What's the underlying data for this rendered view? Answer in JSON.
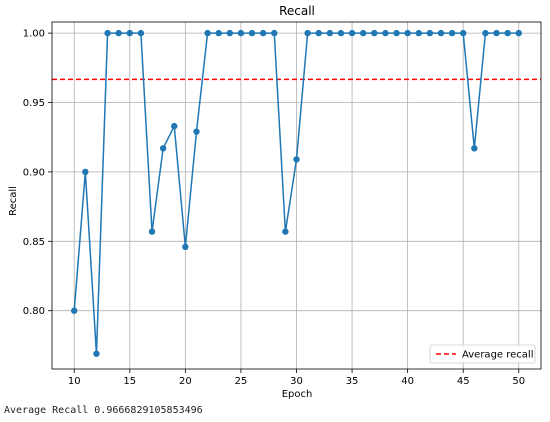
{
  "chart_data": {
    "type": "line",
    "title": "Recall",
    "xlabel": "Epoch",
    "ylabel": "Recall",
    "xlim": [
      8.0,
      52.0
    ],
    "ylim": [
      0.758,
      1.008
    ],
    "x_ticks": [
      10,
      15,
      20,
      25,
      30,
      35,
      40,
      45,
      50
    ],
    "y_ticks": [
      0.8,
      0.85,
      0.9,
      0.95,
      1.0
    ],
    "y_tick_labels": [
      "0.80",
      "0.85",
      "0.90",
      "0.95",
      "1.00"
    ],
    "grid": true,
    "legend": {
      "placement": "lower-right",
      "entries": [
        "Average recall"
      ]
    },
    "series": [
      {
        "color": "#1f77b4",
        "marker": "circle",
        "x": [
          10,
          11,
          12,
          13,
          14,
          15,
          16,
          17,
          18,
          19,
          20,
          21,
          22,
          23,
          24,
          25,
          26,
          27,
          28,
          29,
          30,
          31,
          32,
          33,
          34,
          35,
          36,
          37,
          38,
          39,
          40,
          41,
          42,
          43,
          44,
          45,
          46,
          47,
          48,
          49,
          50
        ],
        "values": [
          0.8,
          0.9,
          0.769,
          1.0,
          1.0,
          1.0,
          1.0,
          0.857,
          0.917,
          0.933,
          0.846,
          0.929,
          1.0,
          1.0,
          1.0,
          1.0,
          1.0,
          1.0,
          1.0,
          0.857,
          0.909,
          1.0,
          1.0,
          1.0,
          1.0,
          1.0,
          1.0,
          1.0,
          1.0,
          1.0,
          1.0,
          1.0,
          1.0,
          1.0,
          1.0,
          1.0,
          0.917,
          1.0,
          1.0,
          1.0,
          1.0
        ]
      }
    ],
    "reference_lines": [
      {
        "name": "Average recall",
        "y": 0.9666829105853496,
        "color": "#ff0000",
        "style": "dashed"
      }
    ]
  },
  "output": {
    "text": "Average Recall 0.9666829105853496"
  }
}
